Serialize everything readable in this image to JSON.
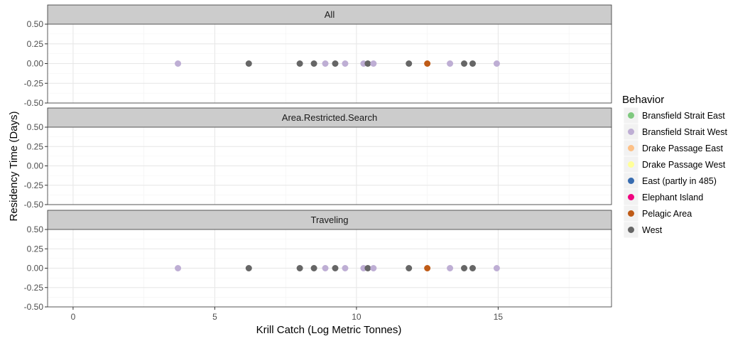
{
  "chart_data": {
    "type": "scatter",
    "xlabel": "Krill Catch (Log Metric Tonnes)",
    "ylabel": "Residency Time (Days)",
    "xlim": [
      -0.9,
      19.0
    ],
    "ylim": [
      -0.5,
      0.5
    ],
    "x_ticks": [
      "0",
      "5",
      "10",
      "15"
    ],
    "x_tick_values": [
      0,
      5,
      10,
      15
    ],
    "y_ticks": [
      "0.50",
      "0.25",
      "0.00",
      "-0.25",
      "-0.50"
    ],
    "y_tick_values": [
      0.5,
      0.25,
      0,
      -0.25,
      -0.5
    ],
    "grid": true,
    "legend": {
      "title": "Behavior",
      "position": "right",
      "entries": [
        {
          "label": "Bransfield Strait East",
          "color": "#7fc97f"
        },
        {
          "label": "Bransfield Strait West",
          "color": "#beaed4"
        },
        {
          "label": "Drake Passage East",
          "color": "#fdc086"
        },
        {
          "label": "Drake Passage West",
          "color": "#ffff99"
        },
        {
          "label": "East (partly in 485)",
          "color": "#386cb0"
        },
        {
          "label": "Elephant Island",
          "color": "#f0027f"
        },
        {
          "label": "Pelagic Area",
          "color": "#bf5b17"
        },
        {
          "label": "West",
          "color": "#666666"
        }
      ]
    },
    "panels": [
      {
        "title": "All",
        "points": [
          {
            "x": 3.7,
            "y": 0,
            "group": "Bransfield Strait West"
          },
          {
            "x": 6.2,
            "y": 0,
            "group": "West"
          },
          {
            "x": 8.0,
            "y": 0,
            "group": "West"
          },
          {
            "x": 8.5,
            "y": 0,
            "group": "West"
          },
          {
            "x": 8.9,
            "y": 0,
            "group": "Bransfield Strait West"
          },
          {
            "x": 9.25,
            "y": 0,
            "group": "West"
          },
          {
            "x": 9.6,
            "y": 0,
            "group": "Bransfield Strait West"
          },
          {
            "x": 10.25,
            "y": 0,
            "group": "Bransfield Strait West"
          },
          {
            "x": 10.4,
            "y": 0,
            "group": "West"
          },
          {
            "x": 10.6,
            "y": 0,
            "group": "Bransfield Strait West"
          },
          {
            "x": 11.85,
            "y": 0,
            "group": "West"
          },
          {
            "x": 12.5,
            "y": 0,
            "group": "Pelagic Area"
          },
          {
            "x": 13.3,
            "y": 0,
            "group": "Bransfield Strait West"
          },
          {
            "x": 13.8,
            "y": 0,
            "group": "West"
          },
          {
            "x": 14.1,
            "y": 0,
            "group": "West"
          },
          {
            "x": 14.95,
            "y": 0,
            "group": "Bransfield Strait West"
          }
        ]
      },
      {
        "title": "Area.Restricted.Search",
        "points": []
      },
      {
        "title": "Traveling",
        "points": [
          {
            "x": 3.7,
            "y": 0,
            "group": "Bransfield Strait West"
          },
          {
            "x": 6.2,
            "y": 0,
            "group": "West"
          },
          {
            "x": 8.0,
            "y": 0,
            "group": "West"
          },
          {
            "x": 8.5,
            "y": 0,
            "group": "West"
          },
          {
            "x": 8.9,
            "y": 0,
            "group": "Bransfield Strait West"
          },
          {
            "x": 9.25,
            "y": 0,
            "group": "West"
          },
          {
            "x": 9.6,
            "y": 0,
            "group": "Bransfield Strait West"
          },
          {
            "x": 10.25,
            "y": 0,
            "group": "Bransfield Strait West"
          },
          {
            "x": 10.4,
            "y": 0,
            "group": "West"
          },
          {
            "x": 10.6,
            "y": 0,
            "group": "Bransfield Strait West"
          },
          {
            "x": 11.85,
            "y": 0,
            "group": "West"
          },
          {
            "x": 12.5,
            "y": 0,
            "group": "Pelagic Area"
          },
          {
            "x": 13.3,
            "y": 0,
            "group": "Bransfield Strait West"
          },
          {
            "x": 13.8,
            "y": 0,
            "group": "West"
          },
          {
            "x": 14.1,
            "y": 0,
            "group": "West"
          },
          {
            "x": 14.95,
            "y": 0,
            "group": "Bransfield Strait West"
          }
        ]
      }
    ]
  }
}
